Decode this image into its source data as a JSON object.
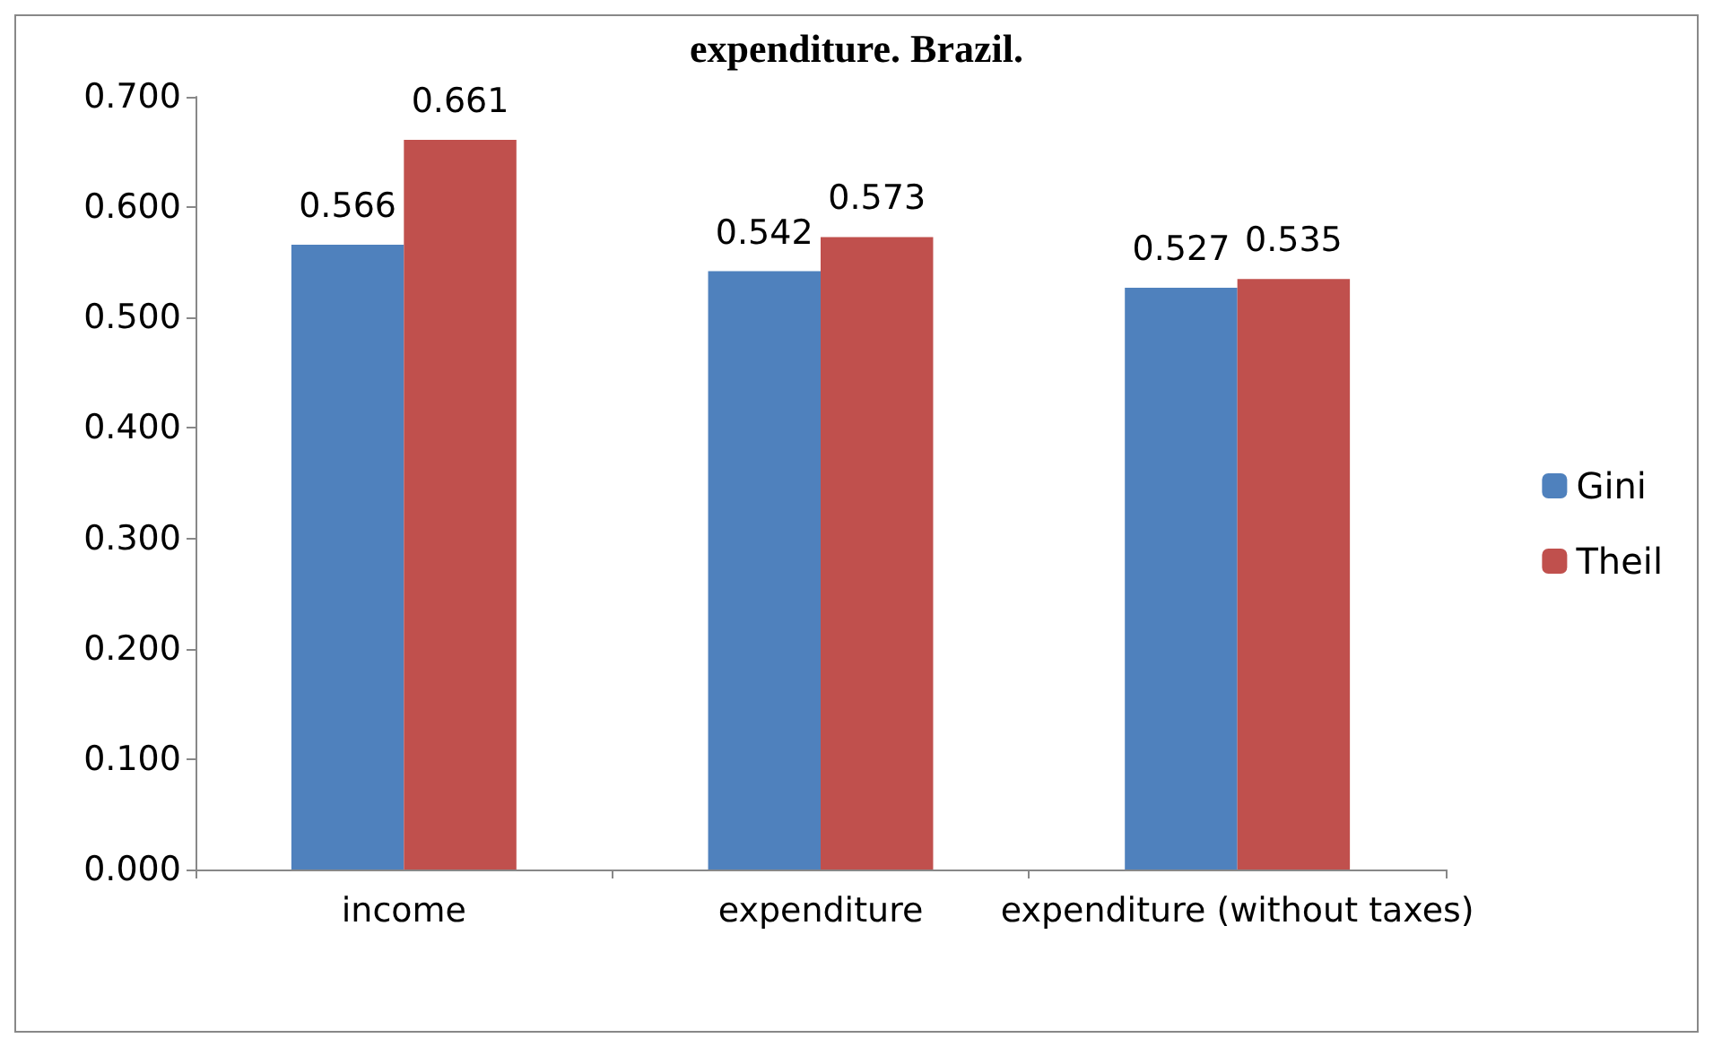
{
  "chart_data": {
    "type": "bar",
    "title": "expenditure. Brazil.",
    "categories": [
      "income",
      "expenditure",
      "expenditure (without taxes)"
    ],
    "series": [
      {
        "name": "Gini",
        "color": "#4f81bd",
        "values": [
          0.566,
          0.542,
          0.527
        ]
      },
      {
        "name": "Theil",
        "color": "#c0504d",
        "values": [
          0.661,
          0.573,
          0.535
        ]
      }
    ],
    "ylim": [
      0,
      0.7
    ],
    "yticks": [
      "0.000",
      "0.100",
      "0.200",
      "0.300",
      "0.400",
      "0.500",
      "0.600",
      "0.700"
    ],
    "data_labels": true,
    "legend": "right",
    "grid": false
  }
}
